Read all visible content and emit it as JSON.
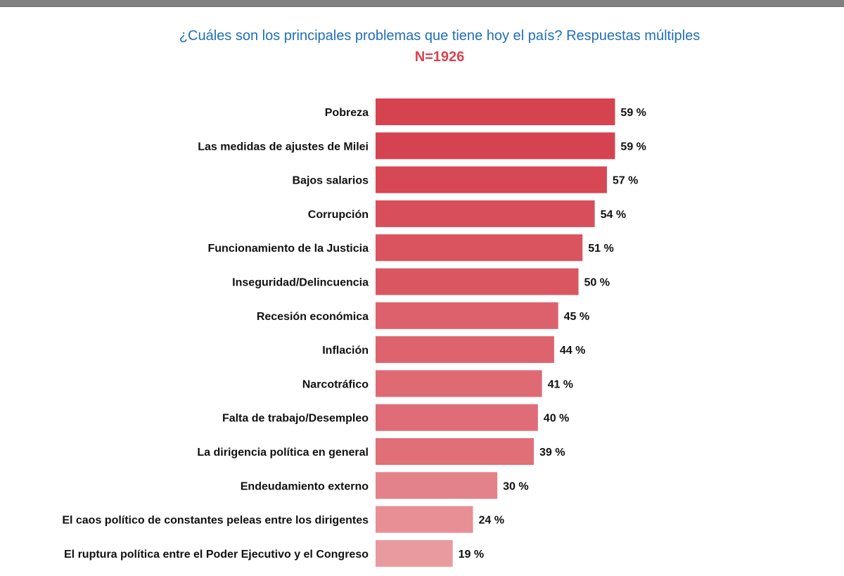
{
  "chart_data": {
    "type": "bar",
    "orientation": "horizontal",
    "title": "¿Cuáles son los principales problemas que tiene hoy el país? Respuestas múltiples",
    "subtitle": "N=1926",
    "xlabel": "",
    "ylabel": "",
    "xlim": [
      0,
      100
    ],
    "grid": false,
    "legend": "none",
    "value_suffix": " %",
    "categories": [
      "Pobreza",
      "Las medidas de ajustes de Milei",
      "Bajos salarios",
      "Corrupción",
      "Funcionamiento de la Justicia",
      "Inseguridad/Delincuencia",
      "Recesión económica",
      "Inflación",
      "Narcotráfico",
      "Falta de trabajo/Desempleo",
      "La dirigencia política en general",
      "Endeudamiento externo",
      "El caos político de constantes peleas entre los dirigentes",
      "El ruptura política entre el Poder Ejecutivo y el Congreso"
    ],
    "values": [
      59,
      59,
      57,
      54,
      51,
      50,
      45,
      44,
      41,
      40,
      39,
      30,
      24,
      19
    ],
    "colors": {
      "title": "#1f6fb8",
      "subtitle": "#d9434f",
      "bar_max": "#d64350",
      "bar_min": "#e99a9f",
      "text": "#111111"
    }
  }
}
